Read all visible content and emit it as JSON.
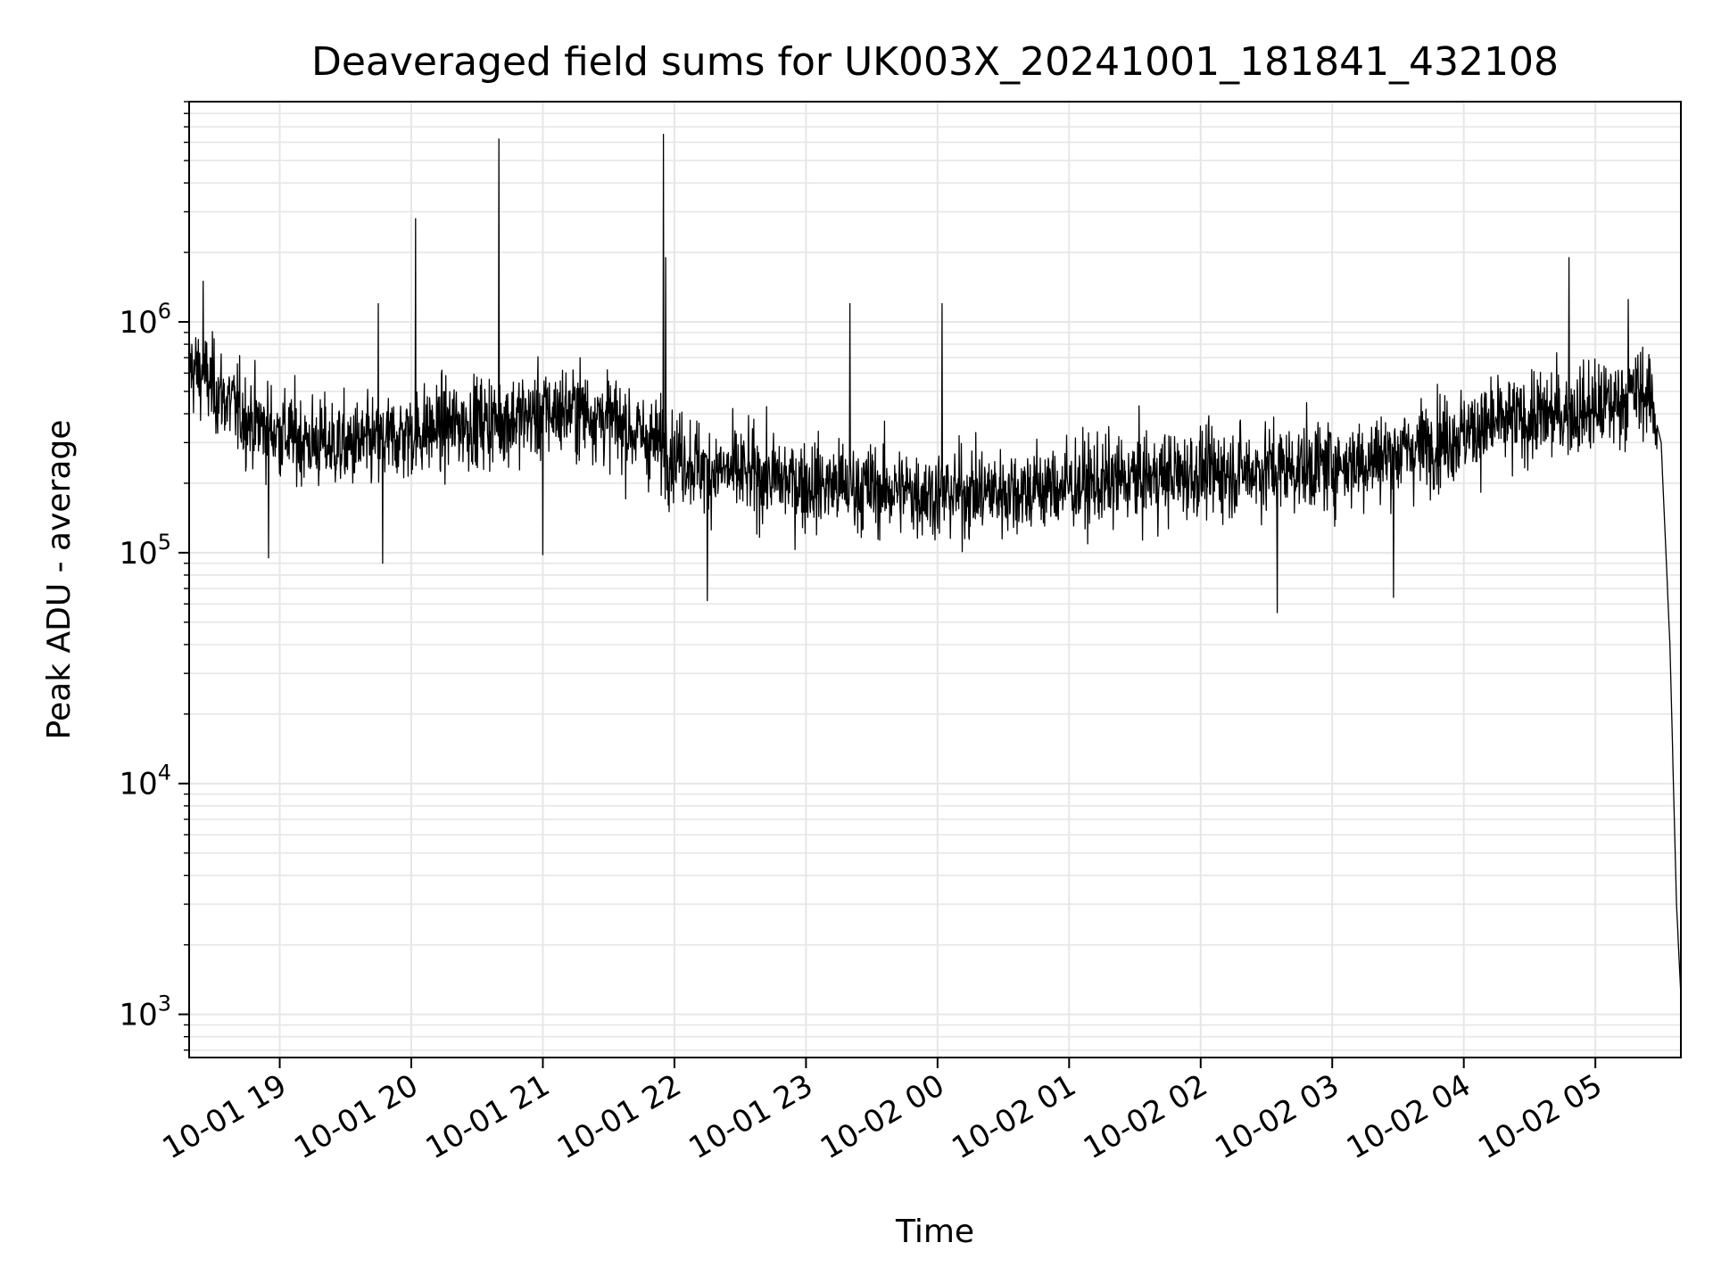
{
  "chart_data": {
    "type": "line",
    "title": "Deaveraged field sums for UK003X_20241001_181841_432108",
    "xlabel": "Time",
    "ylabel": "Peak ADU - average",
    "yscale": "log",
    "grid": true,
    "line_color": "#000000",
    "grid_color": "#e6e6e6",
    "xlim": [
      "2024-10-01 18:18:41",
      "2024-10-02 05:39:00"
    ],
    "ylim": [
      650,
      9000000
    ],
    "x_ticks": [
      {
        "value": "2024-10-01 19:00",
        "label": "10-01 19"
      },
      {
        "value": "2024-10-01 20:00",
        "label": "10-01 20"
      },
      {
        "value": "2024-10-01 21:00",
        "label": "10-01 21"
      },
      {
        "value": "2024-10-01 22:00",
        "label": "10-01 22"
      },
      {
        "value": "2024-10-01 23:00",
        "label": "10-01 23"
      },
      {
        "value": "2024-10-02 00:00",
        "label": "10-02 00"
      },
      {
        "value": "2024-10-02 01:00",
        "label": "10-02 01"
      },
      {
        "value": "2024-10-02 02:00",
        "label": "10-02 02"
      },
      {
        "value": "2024-10-02 03:00",
        "label": "10-02 03"
      },
      {
        "value": "2024-10-02 04:00",
        "label": "10-02 04"
      },
      {
        "value": "2024-10-02 05:00",
        "label": "10-02 05"
      }
    ],
    "y_ticks": [
      {
        "value": 1000,
        "base": "10",
        "exp": "3"
      },
      {
        "value": 10000,
        "base": "10",
        "exp": "4"
      },
      {
        "value": 100000,
        "base": "10",
        "exp": "5"
      },
      {
        "value": 1000000,
        "base": "10",
        "exp": "6"
      }
    ],
    "series": [
      {
        "x": [
          "2024-10-01 18:18:41",
          "2024-10-01 18:30",
          "2024-10-01 18:45",
          "2024-10-01 19:00",
          "2024-10-01 19:15",
          "2024-10-01 19:30",
          "2024-10-01 19:45",
          "2024-10-01 20:00",
          "2024-10-01 20:15",
          "2024-10-01 20:30",
          "2024-10-01 20:45",
          "2024-10-01 21:00",
          "2024-10-01 21:15",
          "2024-10-01 21:30",
          "2024-10-01 21:45",
          "2024-10-01 22:00",
          "2024-10-01 22:15",
          "2024-10-01 22:30",
          "2024-10-01 22:45",
          "2024-10-01 23:00",
          "2024-10-01 23:15",
          "2024-10-01 23:30",
          "2024-10-01 23:45",
          "2024-10-02 00:00",
          "2024-10-02 00:15",
          "2024-10-02 00:30",
          "2024-10-02 00:45",
          "2024-10-02 01:00",
          "2024-10-02 01:15",
          "2024-10-02 01:30",
          "2024-10-02 01:45",
          "2024-10-02 02:00",
          "2024-10-02 02:15",
          "2024-10-02 02:30",
          "2024-10-02 02:45",
          "2024-10-02 03:00",
          "2024-10-02 03:15",
          "2024-10-02 03:30",
          "2024-10-02 03:45",
          "2024-10-02 04:00",
          "2024-10-02 04:15",
          "2024-10-02 04:30",
          "2024-10-02 04:45",
          "2024-10-02 05:00",
          "2024-10-02 05:10",
          "2024-10-02 05:20",
          "2024-10-02 05:25",
          "2024-10-02 05:30",
          "2024-10-02 05:34",
          "2024-10-02 05:37",
          "2024-10-02 05:39"
        ],
        "y": [
          650000,
          520000,
          380000,
          330000,
          300000,
          290000,
          300000,
          330000,
          350000,
          370000,
          380000,
          400000,
          420000,
          380000,
          320000,
          270000,
          230000,
          220000,
          210000,
          200000,
          195000,
          190000,
          185000,
          180000,
          182000,
          185000,
          190000,
          195000,
          200000,
          210000,
          215000,
          220000,
          225000,
          230000,
          235000,
          240000,
          250000,
          270000,
          300000,
          330000,
          360000,
          380000,
          400000,
          420000,
          450000,
          500000,
          480000,
          300000,
          40000,
          3000,
          1200
        ],
        "spread_dex": 0.25,
        "spikes": [
          {
            "x": "2024-10-01 18:25",
            "y": 1500000
          },
          {
            "x": "2024-10-01 19:45",
            "y": 1200000
          },
          {
            "x": "2024-10-01 20:02",
            "y": 2800000
          },
          {
            "x": "2024-10-01 20:40",
            "y": 6200000
          },
          {
            "x": "2024-10-01 21:55",
            "y": 6500000
          },
          {
            "x": "2024-10-01 21:56",
            "y": 1900000
          },
          {
            "x": "2024-10-01 23:20",
            "y": 1200000
          },
          {
            "x": "2024-10-02 00:02",
            "y": 1200000
          },
          {
            "x": "2024-10-02 04:48",
            "y": 1900000
          },
          {
            "x": "2024-10-02 05:15",
            "y": 1250000
          }
        ],
        "dips": [
          {
            "x": "2024-10-01 18:55",
            "y": 95000
          },
          {
            "x": "2024-10-01 19:47",
            "y": 90000
          },
          {
            "x": "2024-10-01 21:00",
            "y": 98000
          },
          {
            "x": "2024-10-01 22:15",
            "y": 62000
          },
          {
            "x": "2024-10-02 02:35",
            "y": 55000
          },
          {
            "x": "2024-10-02 03:28",
            "y": 64000
          }
        ]
      }
    ]
  }
}
